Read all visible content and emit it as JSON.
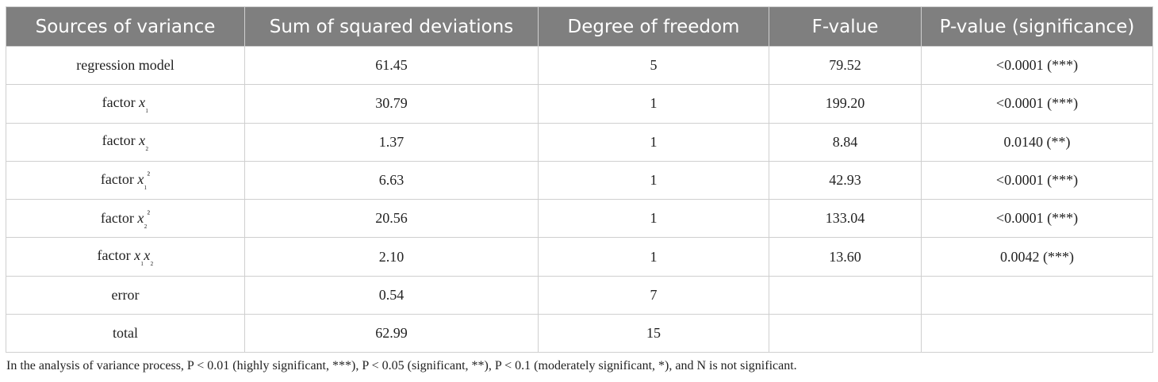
{
  "table": {
    "columns": [
      "Sources of variance",
      "Sum of squared deviations",
      "Degree of freedom",
      "F-value",
      "P-value (significance)"
    ],
    "rows": [
      [
        "regression model",
        "61.45",
        "5",
        "79.52",
        "<0.0001 (***)"
      ],
      [
        "factor x₁",
        "30.79",
        "1",
        "199.20",
        "<0.0001 (***)"
      ],
      [
        "factor x₂",
        "1.37",
        "1",
        "8.84",
        "0.0140 (**)"
      ],
      [
        "factor x₁²",
        "6.63",
        "1",
        "42.93",
        "<0.0001 (***)"
      ],
      [
        "factor x₂²",
        "20.56",
        "1",
        "133.04",
        "<0.0001 (***)"
      ],
      [
        "factor x₁x₂",
        "2.10",
        "1",
        "13.60",
        "0.0042 (***)"
      ],
      [
        "error",
        "0.54",
        "7",
        null,
        null
      ],
      [
        "total",
        "62.99",
        "15",
        null,
        null
      ]
    ]
  },
  "footnote": "In the analysis of variance process, P < 0.01 (highly significant, ***), P < 0.05 (significant, **), P < 0.1 (moderately significant, *), and N is not significant."
}
